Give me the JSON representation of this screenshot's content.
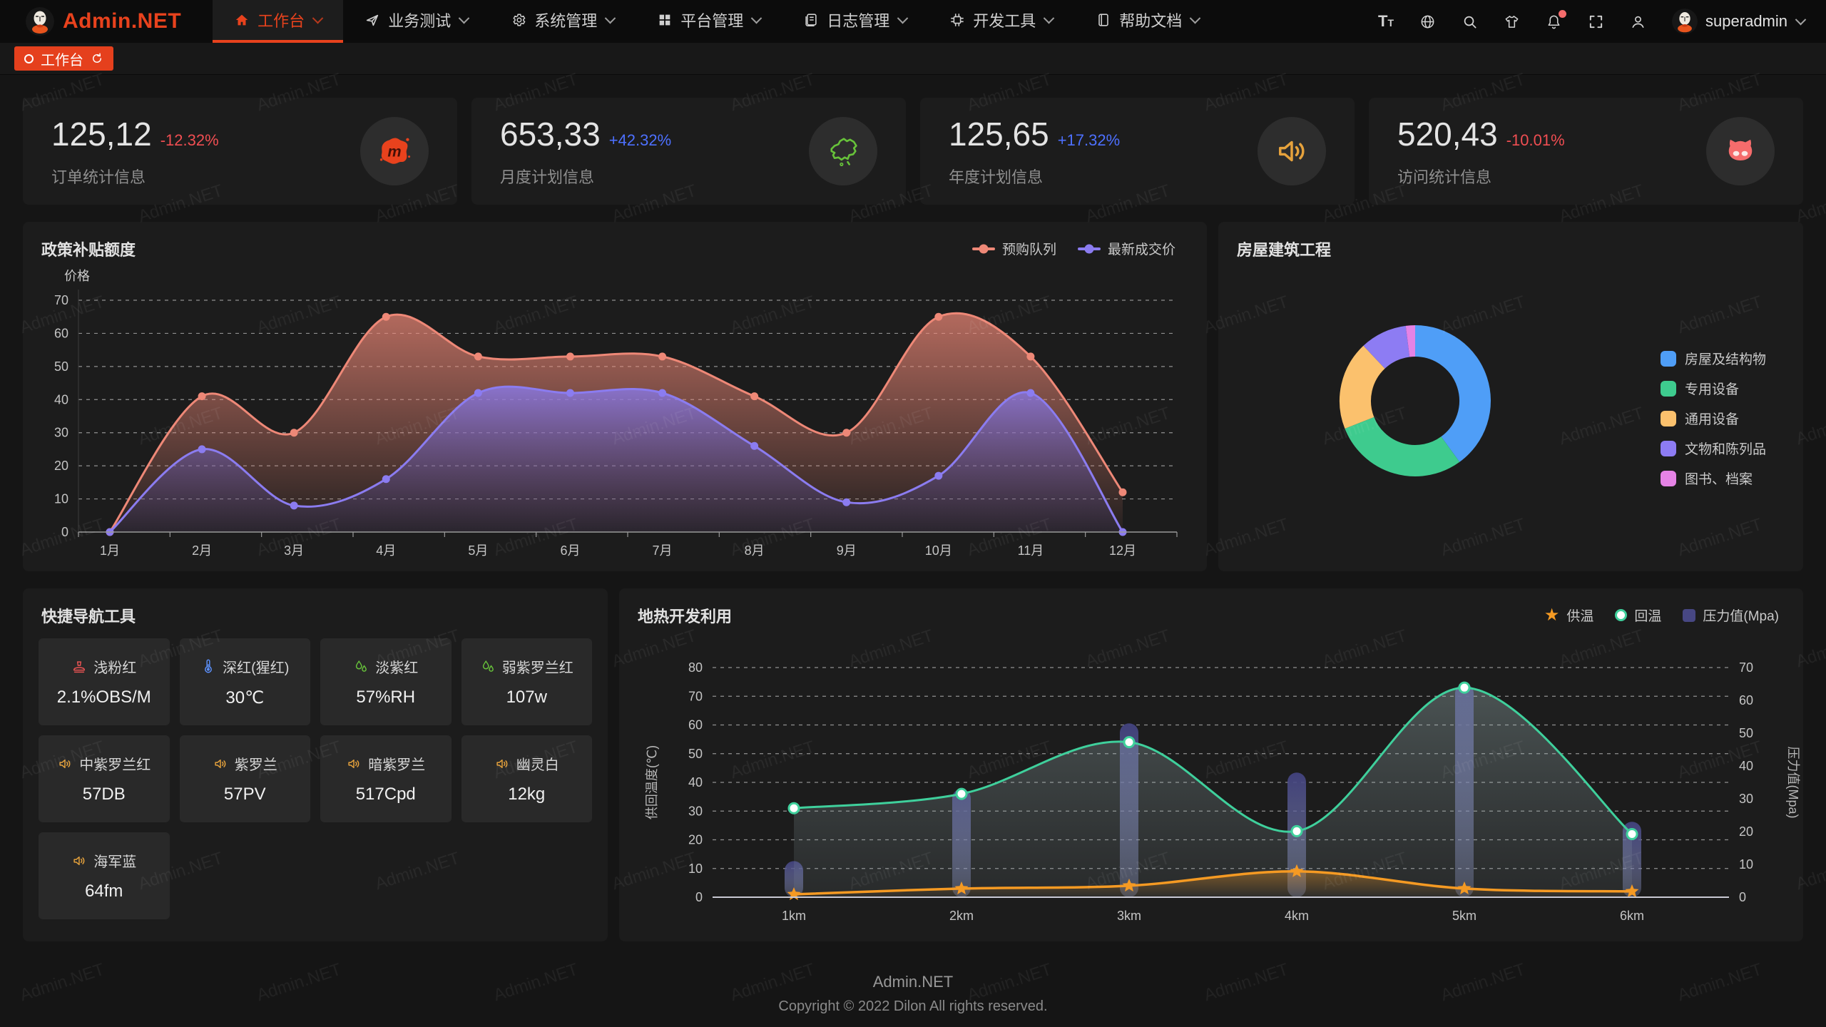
{
  "brand": {
    "logo_text": "Admin.NET",
    "accent_color": "#e8421d"
  },
  "nav": {
    "items": [
      {
        "name": "workbench",
        "label": "工作台",
        "icon": "home-icon",
        "active": true
      },
      {
        "name": "business-test",
        "label": "业务测试",
        "icon": "send-icon",
        "active": false
      },
      {
        "name": "system-mgmt",
        "label": "系统管理",
        "icon": "gear-icon",
        "active": false
      },
      {
        "name": "platform-mgmt",
        "label": "平台管理",
        "icon": "grid-icon",
        "active": false
      },
      {
        "name": "log-mgmt",
        "label": "日志管理",
        "icon": "log-icon",
        "active": false
      },
      {
        "name": "dev-tools",
        "label": "开发工具",
        "icon": "cpu-icon",
        "active": false
      },
      {
        "name": "help-docs",
        "label": "帮助文档",
        "icon": "book-icon",
        "active": false
      }
    ]
  },
  "toolbar": {
    "username": "superadmin",
    "has_notification": true
  },
  "tabs": {
    "active_label": "工作台"
  },
  "stats": [
    {
      "value": "125,12",
      "delta": "-12.32%",
      "direction": "down",
      "label": "订单统计信息",
      "icon": "meetup-splash-icon"
    },
    {
      "value": "653,33",
      "delta": "+42.32%",
      "direction": "up",
      "label": "月度计划信息",
      "icon": "china-map-icon"
    },
    {
      "value": "125,65",
      "delta": "+17.32%",
      "direction": "up",
      "label": "年度计划信息",
      "icon": "speaker-icon"
    },
    {
      "value": "520,43",
      "delta": "-10.01%",
      "direction": "down",
      "label": "访问统计信息",
      "icon": "github-cat-icon"
    }
  ],
  "colors": {
    "up": "#4d70ff",
    "down": "#f04e52"
  },
  "chart_data": [
    {
      "type": "area",
      "title": "政策补贴额度",
      "ylabel": "价格",
      "ylim": [
        0,
        70
      ],
      "ytick_step": 10,
      "grid": "dashed",
      "legend_position": "top-right",
      "categories": [
        "1月",
        "2月",
        "3月",
        "4月",
        "5月",
        "6月",
        "7月",
        "8月",
        "9月",
        "10月",
        "11月",
        "12月"
      ],
      "series": [
        {
          "name": "预购队列",
          "color": "#ee8877",
          "values": [
            0,
            41,
            30,
            65,
            53,
            53,
            53,
            41,
            30,
            65,
            53,
            12
          ]
        },
        {
          "name": "最新成交价",
          "color": "#8b7cf0",
          "values": [
            0,
            25,
            8,
            16,
            42,
            42,
            42,
            26,
            9,
            17,
            42,
            0
          ]
        }
      ]
    },
    {
      "type": "pie",
      "title": "房屋建筑工程",
      "donut": true,
      "legend_position": "right",
      "items": [
        {
          "label": "房屋及结构物",
          "color": "#4f9ef7",
          "value": 40
        },
        {
          "label": "专用设备",
          "color": "#3ecb8e",
          "value": 29
        },
        {
          "label": "通用设备",
          "color": "#fbc16d",
          "value": 19
        },
        {
          "label": "文物和陈列品",
          "color": "#8d7cf3",
          "value": 10
        },
        {
          "label": "图书、档案",
          "color": "#e583e5",
          "value": 2
        }
      ]
    },
    {
      "type": "bar",
      "title": "地热开发利用",
      "legend_position": "top-right",
      "categories": [
        "1km",
        "2km",
        "3km",
        "4km",
        "5km",
        "6km"
      ],
      "left_axis": {
        "label": "供回温度(℃)",
        "max": 80,
        "step": 10
      },
      "right_axis": {
        "label": "压力值(Mpa)",
        "max": 70,
        "step": 10
      },
      "series": [
        {
          "name": "供温",
          "series_type": "line",
          "marker": "star",
          "axis": "left",
          "color": "#f59a23",
          "values": [
            1,
            3,
            4,
            9,
            3,
            2
          ]
        },
        {
          "name": "回温",
          "series_type": "line",
          "marker": "circle",
          "axis": "left",
          "color": "#3fd09c",
          "values": [
            31,
            36,
            54,
            23,
            73,
            22
          ]
        },
        {
          "name": "压力值(Mpa)",
          "series_type": "bar",
          "marker": "bar",
          "axis": "right",
          "color": "#54549c",
          "values": [
            11,
            33,
            53,
            38,
            65,
            23
          ]
        }
      ]
    }
  ],
  "quick_nav": {
    "title": "快捷导航工具",
    "tiles": [
      {
        "name": "浅粉红",
        "value": "2.1%OBS/M",
        "icon": "stamp-icon",
        "color": "#e85353"
      },
      {
        "name": "深红(猩红)",
        "value": "30℃",
        "icon": "thermometer-icon",
        "color": "#5b8ff9"
      },
      {
        "name": "淡紫红",
        "value": "57%RH",
        "icon": "drops-icon",
        "color": "#67c23a"
      },
      {
        "name": "弱紫罗兰红",
        "value": "107w",
        "icon": "drops-icon",
        "color": "#67c23a"
      },
      {
        "name": "中紫罗兰红",
        "value": "57DB",
        "icon": "speaker-icon",
        "color": "#e6a23c"
      },
      {
        "name": "紫罗兰",
        "value": "57PV",
        "icon": "speaker-icon",
        "color": "#e6a23c"
      },
      {
        "name": "暗紫罗兰",
        "value": "517Cpd",
        "icon": "speaker-icon",
        "color": "#e6a23c"
      },
      {
        "name": "幽灵白",
        "value": "12kg",
        "icon": "speaker-icon",
        "color": "#e6a23c"
      },
      {
        "name": "海军蓝",
        "value": "64fm",
        "icon": "speaker-icon",
        "color": "#e6a23c"
      }
    ]
  },
  "footer": {
    "line1": "Admin.NET",
    "line2": "Copyright © 2022 Dilon All rights reserved."
  },
  "watermark": {
    "text": "Admin.NET"
  }
}
